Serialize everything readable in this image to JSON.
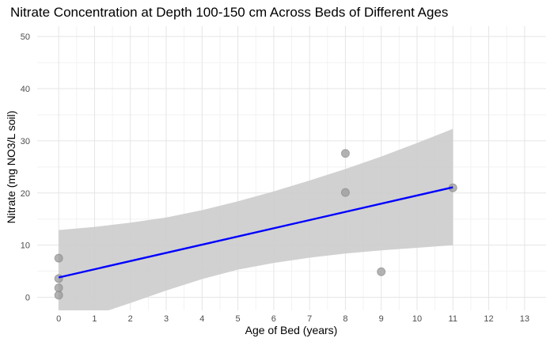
{
  "chart_data": {
    "type": "scatter",
    "title": "Nitrate Concentration at Depth 100-150 cm Across Beds of Different Ages",
    "xlabel": "Age of Bed (years)",
    "ylabel": "Nitrate (mg NO3/L soil)",
    "xlim": [
      -0.6,
      13.6
    ],
    "ylim": [
      -2.5,
      52
    ],
    "xticks": [
      0,
      1,
      2,
      3,
      4,
      5,
      6,
      7,
      8,
      9,
      10,
      11,
      12,
      13
    ],
    "yticks": [
      0,
      10,
      20,
      30,
      40,
      50
    ],
    "grid": true,
    "points": [
      {
        "x": 0,
        "y": 7.5
      },
      {
        "x": 0,
        "y": 3.6
      },
      {
        "x": 0,
        "y": 1.8
      },
      {
        "x": 0,
        "y": 0.4
      },
      {
        "x": 8,
        "y": 27.6
      },
      {
        "x": 8,
        "y": 20.1
      },
      {
        "x": 9,
        "y": 4.9
      },
      {
        "x": 11,
        "y": 21.0
      }
    ],
    "fit_line": {
      "x": [
        0,
        11
      ],
      "y": [
        3.8,
        21.1
      ]
    },
    "confidence_band": {
      "x": [
        0,
        1,
        2,
        3,
        4,
        5,
        6,
        7,
        8,
        9,
        10,
        11
      ],
      "lower": [
        -5.3,
        -3.4,
        -1.1,
        1.3,
        3.5,
        5.3,
        6.6,
        7.6,
        8.4,
        9.0,
        9.5,
        10.0
      ],
      "upper": [
        12.9,
        13.5,
        14.3,
        15.3,
        16.7,
        18.4,
        20.3,
        22.4,
        24.6,
        27.0,
        29.6,
        32.3
      ]
    },
    "colors": {
      "point": "#999999",
      "fit_line": "#0000ff",
      "band": "#cccccc",
      "background": "#ffffff"
    }
  }
}
